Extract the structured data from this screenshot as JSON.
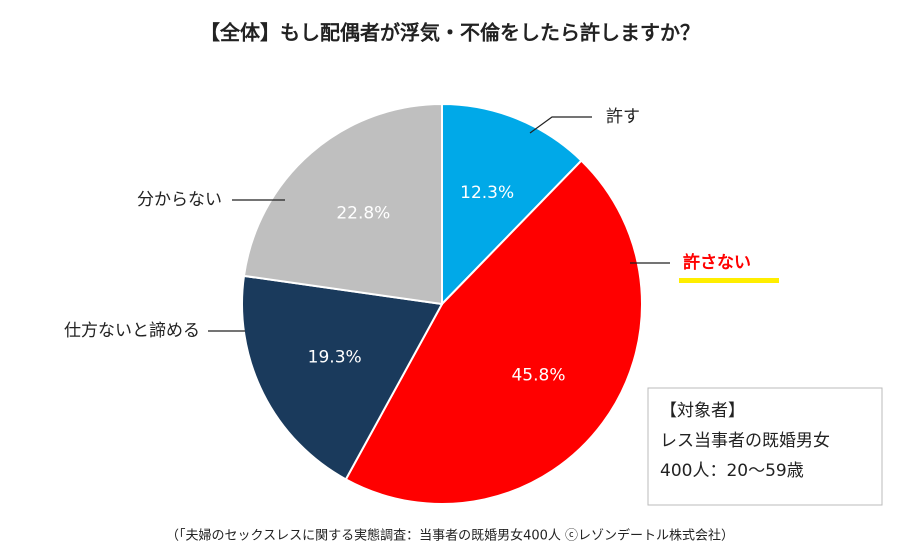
{
  "chart_data": {
    "type": "pie",
    "title": "【全体】もし配偶者が浮気・不倫をしたら許しますか？",
    "categories": [
      "許す",
      "許さない",
      "仕方ないと諦める",
      "分からない"
    ],
    "values": [
      12.3,
      45.8,
      19.3,
      22.8
    ],
    "value_labels": [
      "12.3%",
      "45.8%",
      "19.3%",
      "22.8%"
    ],
    "colors": [
      "#00a9e8",
      "#ff0000",
      "#1a3a5c",
      "#bfbfbf"
    ],
    "note": [
      "【対象者】",
      "レス当事者の既婚男女",
      "400人：20～59歳"
    ],
    "source": "（「夫婦のセックスレスに関する実態調査：当事者の既婚男女400人 ⓒレゾンデートル株式会社）"
  }
}
